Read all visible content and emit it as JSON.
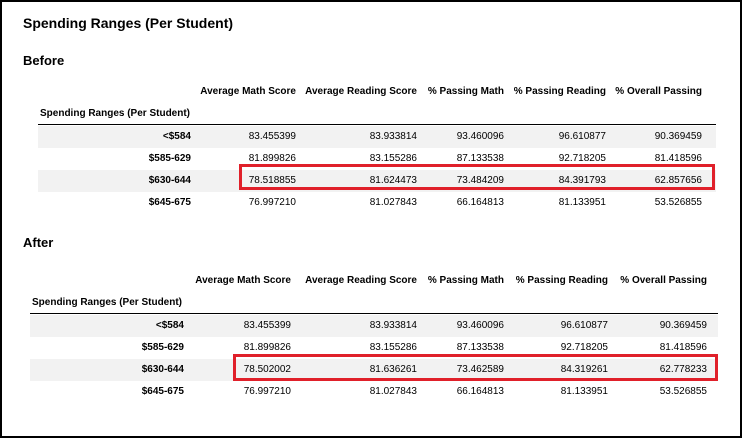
{
  "title": "Spending Ranges (Per Student)",
  "colors": {
    "highlight": "#e0202a",
    "stripe": "#f2f2f2"
  },
  "tables": [
    {
      "label": "Before",
      "index_name": "Spending Ranges (Per Student)",
      "columns": [
        "Average Math Score",
        "Average Reading Score",
        "% Passing Math",
        "% Passing Reading",
        "% Overall Passing"
      ],
      "rows": [
        {
          "index": "<$584",
          "values": [
            "83.455399",
            "83.933814",
            "93.460096",
            "96.610877",
            "90.369459"
          ]
        },
        {
          "index": "$585-629",
          "values": [
            "81.899826",
            "83.155286",
            "87.133538",
            "92.718205",
            "81.418596"
          ]
        },
        {
          "index": "$630-644",
          "values": [
            "78.518855",
            "81.624473",
            "73.484209",
            "84.391793",
            "62.857656"
          ]
        },
        {
          "index": "$645-675",
          "values": [
            "76.997210",
            "81.027843",
            "66.164813",
            "81.133951",
            "53.526855"
          ]
        }
      ]
    },
    {
      "label": "After",
      "index_name": "Spending Ranges (Per Student)",
      "columns": [
        "Average Math Score",
        "Average Reading Score",
        "% Passing Math",
        "% Passing Reading",
        "% Overall Passing"
      ],
      "rows": [
        {
          "index": "<$584",
          "values": [
            "83.455399",
            "83.933814",
            "93.460096",
            "96.610877",
            "90.369459"
          ]
        },
        {
          "index": "$585-629",
          "values": [
            "81.899826",
            "83.155286",
            "87.133538",
            "92.718205",
            "81.418596"
          ]
        },
        {
          "index": "$630-644",
          "values": [
            "78.502002",
            "81.636261",
            "73.462589",
            "84.319261",
            "62.778233"
          ]
        },
        {
          "index": "$645-675",
          "values": [
            "76.997210",
            "81.027843",
            "66.164813",
            "81.133951",
            "53.526855"
          ]
        }
      ]
    }
  ]
}
